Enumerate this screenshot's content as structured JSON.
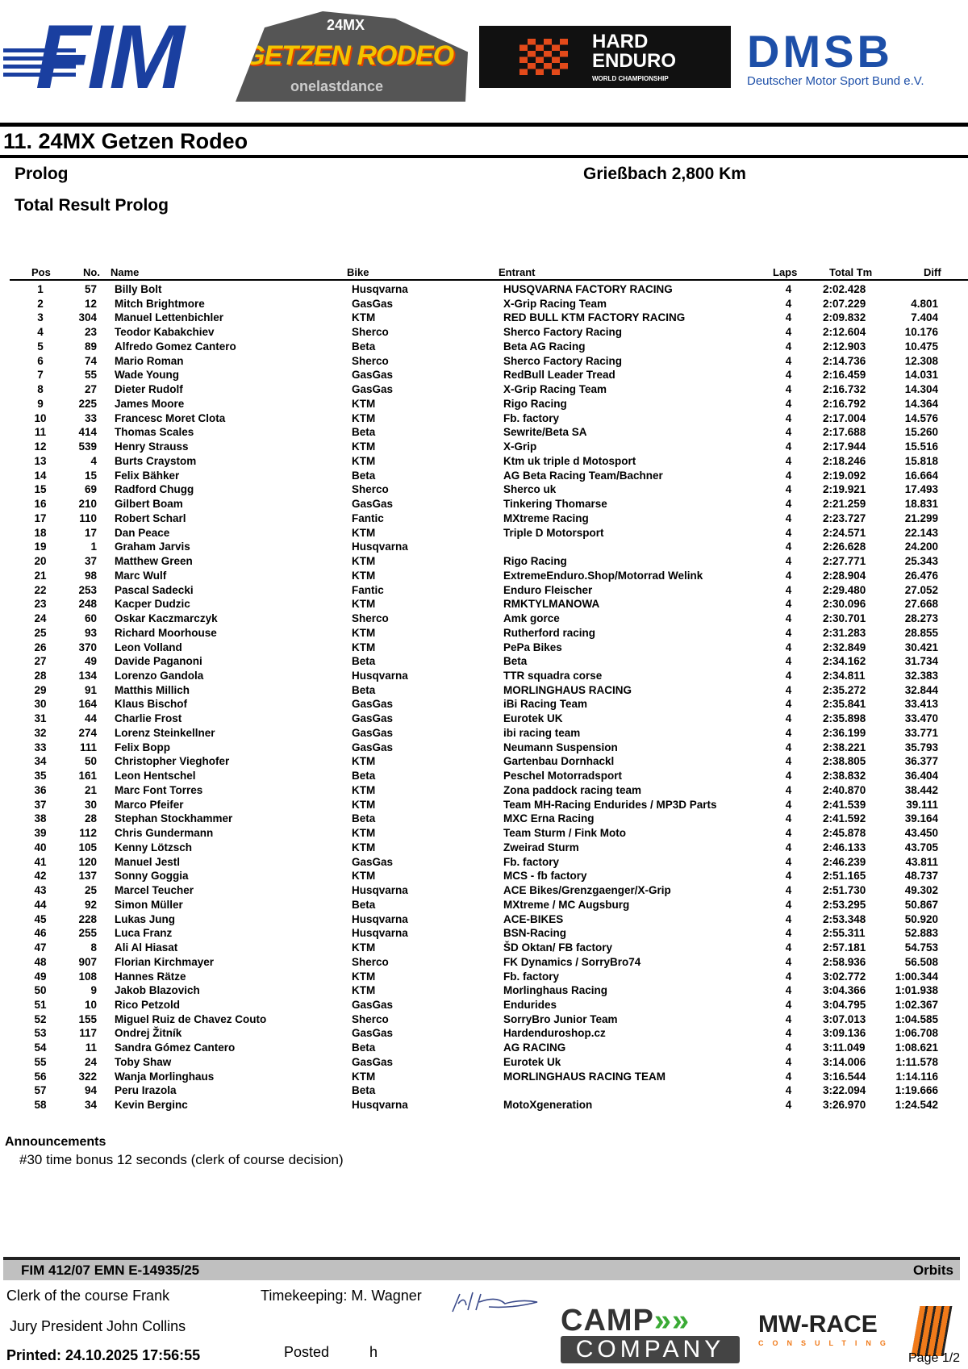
{
  "logos": {
    "fim": "FIM",
    "getzen": "GETZEN RODEO",
    "getzen_top": "24MX",
    "getzen_sub": "onelastdance",
    "hard_enduro": "HARD ENDURO",
    "hard_enduro_sub": "WORLD CHAMPIONSHIP",
    "dmsb": "DMSB",
    "dmsb_sub": "Deutscher Motor Sport Bund e.V.",
    "camp": "CAMP COMPANY",
    "mwrace": "MW-RACE CONSULTING"
  },
  "header": {
    "title": "11. 24MX Getzen Rodeo",
    "session": "Prolog",
    "location": "Grießbach 2,800 Km",
    "subtitle": "Total Result Prolog"
  },
  "columns": [
    "Pos",
    "No.",
    "Name",
    "Bike",
    "Entrant",
    "Laps",
    "Total Tm",
    "Diff"
  ],
  "rows": [
    [
      "1",
      "57",
      "Billy Bolt",
      "Husqvarna",
      "HUSQVARNA FACTORY RACING",
      "4",
      "2:02.428",
      ""
    ],
    [
      "2",
      "12",
      "Mitch Brightmore",
      "GasGas",
      "X-Grip Racing Team",
      "4",
      "2:07.229",
      "4.801"
    ],
    [
      "3",
      "304",
      "Manuel Lettenbichler",
      "KTM",
      "RED BULL KTM FACTORY RACING",
      "4",
      "2:09.832",
      "7.404"
    ],
    [
      "4",
      "23",
      "Teodor Kabakchiev",
      "Sherco",
      "Sherco Factory Racing",
      "4",
      "2:12.604",
      "10.176"
    ],
    [
      "5",
      "89",
      "Alfredo Gomez Cantero",
      "Beta",
      "Beta AG Racing",
      "4",
      "2:12.903",
      "10.475"
    ],
    [
      "6",
      "74",
      "Mario Roman",
      "Sherco",
      "Sherco Factory Racing",
      "4",
      "2:14.736",
      "12.308"
    ],
    [
      "7",
      "55",
      "Wade Young",
      "GasGas",
      "RedBull Leader Tread",
      "4",
      "2:16.459",
      "14.031"
    ],
    [
      "8",
      "27",
      "Dieter Rudolf",
      "GasGas",
      "X-Grip Racing Team",
      "4",
      "2:16.732",
      "14.304"
    ],
    [
      "9",
      "225",
      "James Moore",
      "KTM",
      "Rigo Racing",
      "4",
      "2:16.792",
      "14.364"
    ],
    [
      "10",
      "33",
      "Francesc Moret Clota",
      "KTM",
      "Fb. factory",
      "4",
      "2:17.004",
      "14.576"
    ],
    [
      "11",
      "414",
      "Thomas Scales",
      "Beta",
      "Sewrite/Beta SA",
      "4",
      "2:17.688",
      "15.260"
    ],
    [
      "12",
      "539",
      "Henry Strauss",
      "KTM",
      "X-Grip",
      "4",
      "2:17.944",
      "15.516"
    ],
    [
      "13",
      "4",
      "Burts Craystom",
      "KTM",
      "Ktm uk triple d Motosport",
      "4",
      "2:18.246",
      "15.818"
    ],
    [
      "14",
      "15",
      "Felix Bähker",
      "Beta",
      "AG Beta Racing Team/Bachner",
      "4",
      "2:19.092",
      "16.664"
    ],
    [
      "15",
      "69",
      "Radford Chugg",
      "Sherco",
      "Sherco uk",
      "4",
      "2:19.921",
      "17.493"
    ],
    [
      "16",
      "210",
      "Gilbert Boam",
      "GasGas",
      "Tinkering Thomarse",
      "4",
      "2:21.259",
      "18.831"
    ],
    [
      "17",
      "110",
      "Robert Scharl",
      "Fantic",
      "MXtreme Racing",
      "4",
      "2:23.727",
      "21.299"
    ],
    [
      "18",
      "17",
      "Dan Peace",
      "KTM",
      "Triple D Motorsport",
      "4",
      "2:24.571",
      "22.143"
    ],
    [
      "19",
      "1",
      "Graham Jarvis",
      "Husqvarna",
      "",
      "4",
      "2:26.628",
      "24.200"
    ],
    [
      "20",
      "37",
      "Matthew Green",
      "KTM",
      "Rigo Racing",
      "4",
      "2:27.771",
      "25.343"
    ],
    [
      "21",
      "98",
      "Marc Wulf",
      "KTM",
      "ExtremeEnduro.Shop/Motorrad Welink",
      "4",
      "2:28.904",
      "26.476"
    ],
    [
      "22",
      "253",
      "Pascal Sadecki",
      "Fantic",
      "Enduro Fleischer",
      "4",
      "2:29.480",
      "27.052"
    ],
    [
      "23",
      "248",
      "Kacper Dudzic",
      "KTM",
      "RMKTYLMANOWA",
      "4",
      "2:30.096",
      "27.668"
    ],
    [
      "24",
      "60",
      "Oskar Kaczmarczyk",
      "Sherco",
      "Amk gorce",
      "4",
      "2:30.701",
      "28.273"
    ],
    [
      "25",
      "93",
      "Richard Moorhouse",
      "KTM",
      "Rutherford racing",
      "4",
      "2:31.283",
      "28.855"
    ],
    [
      "26",
      "370",
      "Leon Volland",
      "KTM",
      "PePa Bikes",
      "4",
      "2:32.849",
      "30.421"
    ],
    [
      "27",
      "49",
      "Davide Paganoni",
      "Beta",
      "Beta",
      "4",
      "2:34.162",
      "31.734"
    ],
    [
      "28",
      "134",
      "Lorenzo Gandola",
      "Husqvarna",
      "TTR squadra corse",
      "4",
      "2:34.811",
      "32.383"
    ],
    [
      "29",
      "91",
      "Matthis Millich",
      "Beta",
      "MORLINGHAUS RACING",
      "4",
      "2:35.272",
      "32.844"
    ],
    [
      "30",
      "164",
      "Klaus Bischof",
      "GasGas",
      "iBi Racing Team",
      "4",
      "2:35.841",
      "33.413"
    ],
    [
      "31",
      "44",
      "Charlie Frost",
      "GasGas",
      "Eurotek UK",
      "4",
      "2:35.898",
      "33.470"
    ],
    [
      "32",
      "274",
      "Lorenz Steinkellner",
      "GasGas",
      "ibi racing team",
      "4",
      "2:36.199",
      "33.771"
    ],
    [
      "33",
      "111",
      "Felix Bopp",
      "GasGas",
      "Neumann Suspension",
      "4",
      "2:38.221",
      "35.793"
    ],
    [
      "34",
      "50",
      "Christopher Vieghofer",
      "KTM",
      "Gartenbau Dornhackl",
      "4",
      "2:38.805",
      "36.377"
    ],
    [
      "35",
      "161",
      "Leon Hentschel",
      "Beta",
      "Peschel Motorradsport",
      "4",
      "2:38.832",
      "36.404"
    ],
    [
      "36",
      "21",
      "Marc Font Torres",
      "KTM",
      "Zona paddock racing team",
      "4",
      "2:40.870",
      "38.442"
    ],
    [
      "37",
      "30",
      "Marco Pfeifer",
      "KTM",
      "Team MH-Racing Endurides / MP3D Parts",
      "4",
      "2:41.539",
      "39.111"
    ],
    [
      "38",
      "28",
      "Stephan Stockhammer",
      "Beta",
      "MXC Erna Racing",
      "4",
      "2:41.592",
      "39.164"
    ],
    [
      "39",
      "112",
      "Chris Gundermann",
      "KTM",
      "Team Sturm / Fink Moto",
      "4",
      "2:45.878",
      "43.450"
    ],
    [
      "40",
      "105",
      "Kenny Lötzsch",
      "KTM",
      "Zweirad Sturm",
      "4",
      "2:46.133",
      "43.705"
    ],
    [
      "41",
      "120",
      "Manuel Jestl",
      "GasGas",
      "Fb. factory",
      "4",
      "2:46.239",
      "43.811"
    ],
    [
      "42",
      "137",
      "Sonny Goggia",
      "KTM",
      "MCS - fb factory",
      "4",
      "2:51.165",
      "48.737"
    ],
    [
      "43",
      "25",
      "Marcel Teucher",
      "Husqvarna",
      "ACE Bikes/Grenzgaenger/X-Grip",
      "4",
      "2:51.730",
      "49.302"
    ],
    [
      "44",
      "92",
      "Simon Müller",
      "Beta",
      "MXtreme / MC Augsburg",
      "4",
      "2:53.295",
      "50.867"
    ],
    [
      "45",
      "228",
      "Lukas Jung",
      "Husqvarna",
      "ACE-BIKES",
      "4",
      "2:53.348",
      "50.920"
    ],
    [
      "46",
      "255",
      "Luca Franz",
      "Husqvarna",
      "BSN-Racing",
      "4",
      "2:55.311",
      "52.883"
    ],
    [
      "47",
      "8",
      "Ali Al Hiasat",
      "KTM",
      "ŠD Oktan/ FB factory",
      "4",
      "2:57.181",
      "54.753"
    ],
    [
      "48",
      "907",
      "Florian Kirchmayer",
      "Sherco",
      "FK Dynamics / SorryBro74",
      "4",
      "2:58.936",
      "56.508"
    ],
    [
      "49",
      "108",
      "Hannes Rätze",
      "KTM",
      "Fb. factory",
      "4",
      "3:02.772",
      "1:00.344"
    ],
    [
      "50",
      "9",
      "Jakob Blazovich",
      "KTM",
      "Morlinghaus Racing",
      "4",
      "3:04.366",
      "1:01.938"
    ],
    [
      "51",
      "10",
      "Rico Petzold",
      "GasGas",
      "Endurides",
      "4",
      "3:04.795",
      "1:02.367"
    ],
    [
      "52",
      "155",
      "Miguel Ruiz de Chavez Couto",
      "Sherco",
      "SorryBro Junior Team",
      "4",
      "3:07.013",
      "1:04.585"
    ],
    [
      "53",
      "117",
      "Ondrej Žitník",
      "GasGas",
      "Hardenduroshop.cz",
      "4",
      "3:09.136",
      "1:06.708"
    ],
    [
      "54",
      "11",
      "Sandra Gómez Cantero",
      "Beta",
      "AG RACING",
      "4",
      "3:11.049",
      "1:08.621"
    ],
    [
      "55",
      "24",
      "Toby Shaw",
      "GasGas",
      "Eurotek Uk",
      "4",
      "3:14.006",
      "1:11.578"
    ],
    [
      "56",
      "322",
      "Wanja Morlinghaus",
      "KTM",
      "MORLINGHAUS RACING TEAM",
      "4",
      "3:16.544",
      "1:14.116"
    ],
    [
      "57",
      "94",
      "Peru Irazola",
      "Beta",
      "",
      "4",
      "3:22.094",
      "1:19.666"
    ],
    [
      "58",
      "34",
      "Kevin Berginc",
      "Husqvarna",
      "MotoXgeneration",
      "4",
      "3:26.970",
      "1:24.542"
    ]
  ],
  "announcements": {
    "title": "Announcements",
    "text": "#30 time bonus 12 seconds (clerk of course decision)"
  },
  "footer": {
    "codes": "FIM 412/07  EMN E-14935/25",
    "provider": "Orbits",
    "clerk": "Clerk of the course Frank",
    "timekeeping": "Timekeeping: M. Wagner",
    "jury": "Jury President John Collins",
    "printed": "Printed: 24.10.2025 17:56:55",
    "posted": "Posted",
    "posted_h": "h",
    "page": "Page 1/2"
  }
}
